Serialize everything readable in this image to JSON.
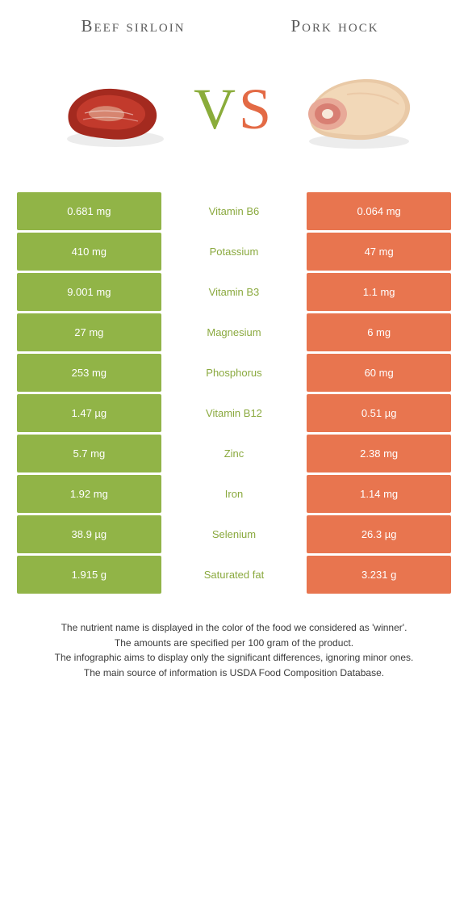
{
  "header": {
    "left_title": "Beef sirloin",
    "right_title": "Pork hock",
    "vs_v": "V",
    "vs_s": "S"
  },
  "colors": {
    "green": "#91b447",
    "orange": "#e8754f",
    "mid_green_text": "#8aa93e",
    "mid_orange_text": "#e36a45",
    "page_bg": "#ffffff"
  },
  "table": {
    "rows": [
      {
        "left": "0.681 mg",
        "nutrient": "Vitamin B6",
        "right": "0.064 mg",
        "winner": "green"
      },
      {
        "left": "410 mg",
        "nutrient": "Potassium",
        "right": "47 mg",
        "winner": "green"
      },
      {
        "left": "9.001 mg",
        "nutrient": "Vitamin B3",
        "right": "1.1 mg",
        "winner": "green"
      },
      {
        "left": "27 mg",
        "nutrient": "Magnesium",
        "right": "6 mg",
        "winner": "green"
      },
      {
        "left": "253 mg",
        "nutrient": "Phosphorus",
        "right": "60 mg",
        "winner": "green"
      },
      {
        "left": "1.47 µg",
        "nutrient": "Vitamin B12",
        "right": "0.51 µg",
        "winner": "green"
      },
      {
        "left": "5.7 mg",
        "nutrient": "Zinc",
        "right": "2.38 mg",
        "winner": "green"
      },
      {
        "left": "1.92 mg",
        "nutrient": "Iron",
        "right": "1.14 mg",
        "winner": "green"
      },
      {
        "left": "38.9 µg",
        "nutrient": "Selenium",
        "right": "26.3 µg",
        "winner": "green"
      },
      {
        "left": "1.915 g",
        "nutrient": "Saturated fat",
        "right": "3.231 g",
        "winner": "green"
      }
    ]
  },
  "footnotes": {
    "line1": "The nutrient name is displayed in the color of the food we considered as 'winner'.",
    "line2": "The amounts are specified per 100 gram of the product.",
    "line3": "The infographic aims to display only the significant differences, ignoring minor ones.",
    "line4": "The main source of information is USDA Food Composition Database."
  }
}
